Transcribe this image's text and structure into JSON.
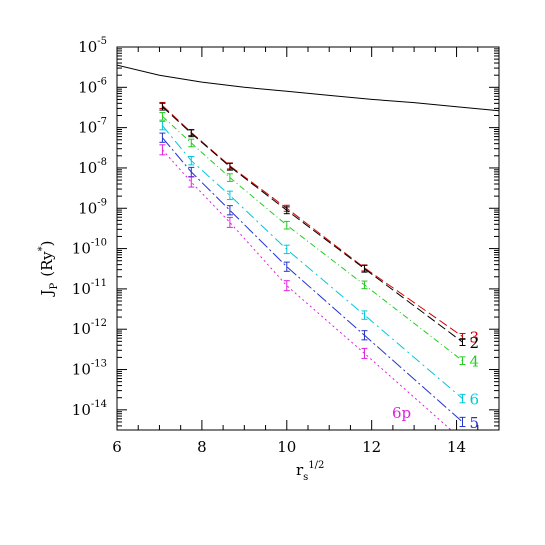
{
  "chart_data": {
    "type": "line",
    "xlabel": {
      "base": "r",
      "sub": "s",
      "sup": "1/2"
    },
    "ylabel": {
      "base": "J",
      "sub": "P",
      "unit": "(Ry",
      "unit_sup": "*",
      "unit_close": ")"
    },
    "xlim": [
      6,
      15
    ],
    "ylim_log10": [
      -14.5,
      -5
    ],
    "yscale": "log",
    "grid": false,
    "x_ticks": [
      6,
      8,
      10,
      12,
      14
    ],
    "x_tick_labels": [
      "6",
      "8",
      "10",
      "12",
      "14"
    ],
    "y_ticks_log10": [
      -14,
      -13,
      -12,
      -11,
      -10,
      -9,
      -8,
      -7,
      -6,
      -5
    ],
    "y_tick_labels": [
      {
        "base": "10",
        "exp": "-14"
      },
      {
        "base": "10",
        "exp": "-13"
      },
      {
        "base": "10",
        "exp": "-12"
      },
      {
        "base": "10",
        "exp": "-11"
      },
      {
        "base": "10",
        "exp": "-10"
      },
      {
        "base": "10",
        "exp": "-9"
      },
      {
        "base": "10",
        "exp": "-8"
      },
      {
        "base": "10",
        "exp": "-7"
      },
      {
        "base": "10",
        "exp": "-6"
      },
      {
        "base": "10",
        "exp": "-5"
      }
    ],
    "x": [
      7.07,
      7.75,
      8.66,
      10.0,
      11.83,
      14.14
    ],
    "series": [
      {
        "label": "3",
        "color": "#d40000",
        "dash": "9,4",
        "log10_y": [
          -6.45,
          -7.12,
          -7.95,
          -9.0,
          -10.48,
          -12.18
        ]
      },
      {
        "label": "2",
        "color": "#000000",
        "dash": "9,4",
        "log10_y": [
          -6.48,
          -7.14,
          -7.97,
          -9.05,
          -10.5,
          -12.32
        ]
      },
      {
        "label": "4",
        "color": "#22cc22",
        "dash": "6,3,1,3",
        "log10_y": [
          -6.72,
          -7.38,
          -8.24,
          -9.42,
          -10.9,
          -12.78
        ]
      },
      {
        "label": "6",
        "color": "#00c8dc",
        "dash": "10,4,2,4",
        "log10_y": [
          -6.95,
          -7.82,
          -8.68,
          -10.02,
          -11.65,
          -13.72
        ]
      },
      {
        "label": "5",
        "color": "#2233cc",
        "dash": "12,3,2,3",
        "log10_y": [
          -7.25,
          -8.1,
          -9.05,
          -10.45,
          -12.15,
          -14.3
        ]
      },
      {
        "label": "6p",
        "color": "#e020e0",
        "dash": "2,3",
        "log10_y": [
          -7.55,
          -8.35,
          -9.35,
          -10.92,
          -12.6,
          -14.75
        ]
      }
    ],
    "reference_curve": {
      "color": "#000000",
      "x": [
        6,
        7,
        8,
        9,
        10,
        11,
        12,
        13,
        14,
        15
      ],
      "log10_y": [
        -5.45,
        -5.7,
        -5.87,
        -6.0,
        -6.1,
        -6.2,
        -6.3,
        -6.38,
        -6.48,
        -6.58
      ]
    }
  }
}
